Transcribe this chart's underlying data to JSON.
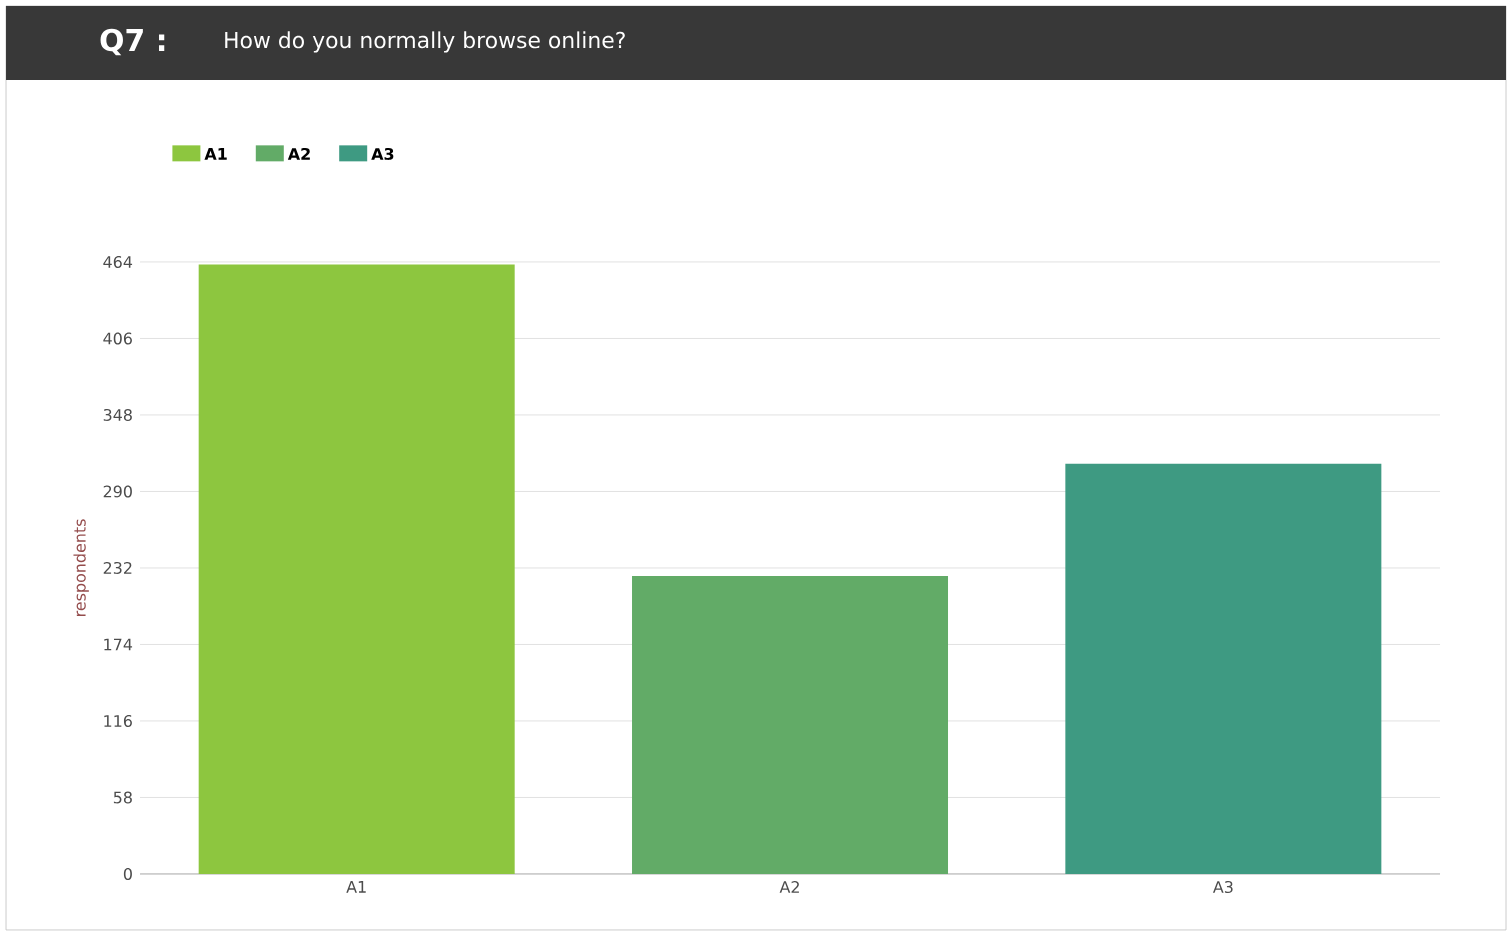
{
  "chart_data": {
    "type": "bar",
    "title": "Q7 :",
    "subtitle": "How do you normally browse online?",
    "ylabel": "respondents",
    "categories": [
      "A1",
      "A2",
      "A3"
    ],
    "series": [
      {
        "name": "A1",
        "color": "#8dc63f",
        "values": [
          462,
          null,
          null
        ]
      },
      {
        "name": "A2",
        "color": "#62ab67",
        "values": [
          null,
          226,
          null
        ]
      },
      {
        "name": "A3",
        "color": "#3e9a82",
        "values": [
          null,
          null,
          311
        ]
      }
    ],
    "ylim": [
      0,
      464
    ],
    "yticks": [
      0,
      58,
      116,
      174,
      232,
      290,
      348,
      406,
      464
    ],
    "grid": "y",
    "legend": "top left"
  }
}
